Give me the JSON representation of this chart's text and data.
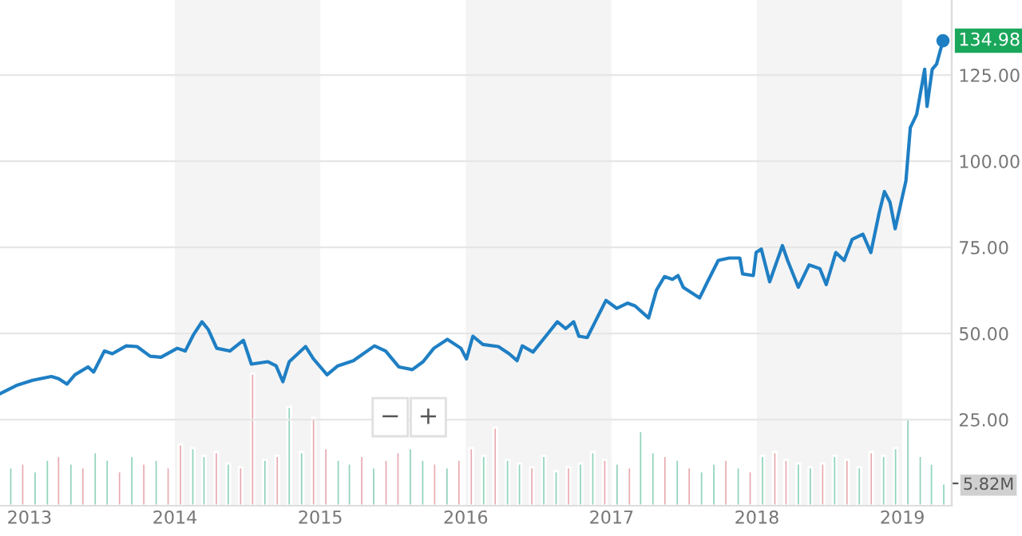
{
  "chart_data": {
    "type": "line",
    "xlim": [
      "2012-10-19",
      "2019-05-05"
    ],
    "xticks": [
      {
        "value": "2013-01-01",
        "label": "2013"
      },
      {
        "value": "2014-01-01",
        "label": "2014"
      },
      {
        "value": "2015-01-01",
        "label": "2015"
      },
      {
        "value": "2016-01-01",
        "label": "2016"
      },
      {
        "value": "2017-01-01",
        "label": "2017"
      },
      {
        "value": "2018-01-01",
        "label": "2018"
      },
      {
        "value": "2019-01-01",
        "label": "2019"
      }
    ],
    "ylim": [
      0,
      146.8
    ],
    "yticks": [
      {
        "value": 25,
        "label": "25.00"
      },
      {
        "value": 50,
        "label": "50.00"
      },
      {
        "value": 75,
        "label": "75.00"
      },
      {
        "value": 100,
        "label": "100.00"
      },
      {
        "value": 125,
        "label": "125.00"
      }
    ],
    "y2lim": [
      0,
      132
    ],
    "y2ticks": [
      {
        "value": 5.82,
        "label": "5.82M"
      }
    ],
    "grid": "y",
    "bands": [
      {
        "axis": "x",
        "from": "2014-01-01",
        "to": "2015-01-01",
        "color": "#f4f4f4"
      },
      {
        "axis": "x",
        "from": "2016-01-01",
        "to": "2017-01-01",
        "color": "#f4f4f4"
      },
      {
        "axis": "x",
        "from": "2018-01-01",
        "to": "2019-01-01",
        "color": "#f4f4f4"
      }
    ],
    "annotations": [
      {
        "text": "134.98",
        "x": "2019-04-13",
        "y": 134.98
      },
      "−",
      "+"
    ],
    "series": [
      {
        "color": "#1f7fc4",
        "x": [
          "2012-10-19",
          "2012-11-29",
          "2013-01-09",
          "2013-02-25",
          "2013-03-15",
          "2013-04-05",
          "2013-04-25",
          "2013-05-28",
          "2013-06-11",
          "2013-07-08",
          "2013-07-28",
          "2013-09-01",
          "2013-09-28",
          "2013-10-31",
          "2013-11-27",
          "2014-01-07",
          "2014-01-27",
          "2014-02-16",
          "2014-03-10",
          "2014-03-26",
          "2014-04-16",
          "2014-05-19",
          "2014-06-22",
          "2014-07-12",
          "2014-08-22",
          "2014-09-12",
          "2014-09-29",
          "2014-10-15",
          "2014-11-25",
          "2014-12-15",
          "2015-01-18",
          "2015-02-14",
          "2015-03-25",
          "2015-05-17",
          "2015-06-14",
          "2015-07-17",
          "2015-08-20",
          "2015-09-16",
          "2015-10-13",
          "2015-11-16",
          "2015-12-20",
          "2016-01-03",
          "2016-01-19",
          "2016-02-13",
          "2016-03-23",
          "2016-04-19",
          "2016-05-09",
          "2016-05-22",
          "2016-06-18",
          "2016-07-22",
          "2016-08-18",
          "2016-09-08",
          "2016-09-28",
          "2016-10-11",
          "2016-11-01",
          "2016-11-21",
          "2016-12-18",
          "2017-01-14",
          "2017-02-10",
          "2017-03-01",
          "2017-04-04",
          "2017-04-24",
          "2017-05-14",
          "2017-06-03",
          "2017-06-17",
          "2017-06-30",
          "2017-08-10",
          "2017-08-30",
          "2017-09-26",
          "2017-10-23",
          "2017-11-19",
          "2017-11-26",
          "2017-12-23",
          "2017-12-30",
          "2018-01-12",
          "2018-02-02",
          "2018-03-06",
          "2018-03-19",
          "2018-04-15",
          "2018-05-12",
          "2018-06-08",
          "2018-06-24",
          "2018-07-18",
          "2018-08-08",
          "2018-08-28",
          "2018-09-24",
          "2018-10-14",
          "2018-11-04",
          "2018-11-17",
          "2018-12-01",
          "2018-12-14",
          "2019-01-10",
          "2019-01-21",
          "2019-02-06",
          "2019-02-26",
          "2019-03-04",
          "2019-03-17",
          "2019-03-28",
          "2019-04-13"
        ],
        "values": [
          32.5,
          34.9,
          36.4,
          37.5,
          36.9,
          35.3,
          38.0,
          40.3,
          38.8,
          44.9,
          44.1,
          46.4,
          46.2,
          43.4,
          43.1,
          45.7,
          44.9,
          49.5,
          53.4,
          51.1,
          45.7,
          44.9,
          48.0,
          41.1,
          41.8,
          40.6,
          36.0,
          41.8,
          46.2,
          42.6,
          38.0,
          40.6,
          42.1,
          46.4,
          44.9,
          40.3,
          39.5,
          41.8,
          45.7,
          48.3,
          45.7,
          42.6,
          49.2,
          46.8,
          46.2,
          44.1,
          42.1,
          46.4,
          44.6,
          49.5,
          53.4,
          51.4,
          53.4,
          49.2,
          48.8,
          53.4,
          59.6,
          57.3,
          58.8,
          58.0,
          54.5,
          62.6,
          66.5,
          65.7,
          66.8,
          63.4,
          60.3,
          65.0,
          71.2,
          71.9,
          71.9,
          67.3,
          66.8,
          73.5,
          74.5,
          65.0,
          75.5,
          71.2,
          63.4,
          69.9,
          68.8,
          64.2,
          73.5,
          71.2,
          77.3,
          78.8,
          73.5,
          85.1,
          91.2,
          88.1,
          80.4,
          94.3,
          109.7,
          113.6,
          126.7,
          115.9,
          126.7,
          128.2,
          134.98
        ]
      },
      {
        "type": "bar",
        "axis": "y2",
        "x": [
          "2012-11-15",
          "2012-12-15",
          "2013-01-15",
          "2013-02-15",
          "2013-03-15",
          "2013-04-15",
          "2013-05-15",
          "2013-06-15",
          "2013-07-15",
          "2013-08-15",
          "2013-09-15",
          "2013-10-15",
          "2013-11-15",
          "2013-12-15",
          "2014-01-15",
          "2014-02-15",
          "2014-03-15",
          "2014-04-15",
          "2014-05-15",
          "2014-06-15",
          "2014-07-15",
          "2014-08-15",
          "2014-09-15",
          "2014-10-15",
          "2014-11-15",
          "2014-12-15",
          "2015-01-15",
          "2015-02-15",
          "2015-03-15",
          "2015-04-15",
          "2015-05-15",
          "2015-06-15",
          "2015-07-15",
          "2015-08-15",
          "2015-09-15",
          "2015-10-15",
          "2015-11-15",
          "2015-12-15",
          "2016-01-15",
          "2016-02-15",
          "2016-03-15",
          "2016-04-15",
          "2016-05-15",
          "2016-06-15",
          "2016-07-15",
          "2016-08-15",
          "2016-09-15",
          "2016-10-15",
          "2016-11-15",
          "2016-12-15",
          "2017-01-15",
          "2017-02-15",
          "2017-03-15",
          "2017-04-15",
          "2017-05-15",
          "2017-06-15",
          "2017-07-15",
          "2017-08-15",
          "2017-09-15",
          "2017-10-15",
          "2017-11-15",
          "2017-12-15",
          "2018-01-15",
          "2018-02-15",
          "2018-03-15",
          "2018-04-15",
          "2018-05-15",
          "2018-06-15",
          "2018-07-15",
          "2018-08-15",
          "2018-09-15",
          "2018-10-15",
          "2018-11-15",
          "2018-12-15",
          "2019-01-15",
          "2019-02-15",
          "2019-03-15",
          "2019-04-15"
        ],
        "values": [
          10,
          11,
          9,
          12,
          13,
          11,
          10,
          14,
          12,
          9,
          13,
          11,
          12,
          10,
          16,
          15,
          13,
          14,
          11,
          10,
          34.5,
          12,
          13,
          25.8,
          14,
          22.9,
          15,
          12,
          11,
          13,
          10,
          12,
          14,
          15,
          12,
          11,
          10,
          12,
          15,
          13,
          20.4,
          12,
          11,
          10,
          13,
          9,
          10,
          11,
          14,
          12,
          11,
          10,
          19.5,
          14,
          13,
          12,
          10,
          9,
          11,
          12,
          10,
          9,
          13,
          14,
          12,
          11,
          10,
          11,
          13,
          12,
          10,
          14,
          13,
          15,
          22.9,
          13,
          11,
          5.82
        ],
        "colors": [
          "#8fd3b8",
          "#e8aab0",
          "#8fd3b8",
          "#8fd3b8",
          "#e8aab0",
          "#8fd3b8",
          "#e8aab0",
          "#8fd3b8",
          "#8fd3b8",
          "#e8aab0",
          "#8fd3b8",
          "#e8aab0",
          "#8fd3b8",
          "#e8aab0",
          "#e8aab0",
          "#8fd3b8",
          "#8fd3b8",
          "#e8aab0",
          "#8fd3b8",
          "#e8aab0",
          "#e8aab0",
          "#8fd3b8",
          "#e8aab0",
          "#8fd3b8",
          "#8fd3b8",
          "#e8aab0",
          "#e8aab0",
          "#8fd3b8",
          "#8fd3b8",
          "#e8aab0",
          "#8fd3b8",
          "#e8aab0",
          "#e8aab0",
          "#8fd3b8",
          "#8fd3b8",
          "#e8aab0",
          "#8fd3b8",
          "#e8aab0",
          "#e8aab0",
          "#8fd3b8",
          "#e8aab0",
          "#8fd3b8",
          "#8fd3b8",
          "#e8aab0",
          "#8fd3b8",
          "#8fd3b8",
          "#e8aab0",
          "#8fd3b8",
          "#8fd3b8",
          "#e8aab0",
          "#8fd3b8",
          "#e8aab0",
          "#8fd3b8",
          "#8fd3b8",
          "#e8aab0",
          "#8fd3b8",
          "#e8aab0",
          "#8fd3b8",
          "#8fd3b8",
          "#e8aab0",
          "#8fd3b8",
          "#e8aab0",
          "#8fd3b8",
          "#e8aab0",
          "#e8aab0",
          "#8fd3b8",
          "#8fd3b8",
          "#e8aab0",
          "#8fd3b8",
          "#e8aab0",
          "#8fd3b8",
          "#e8aab0",
          "#8fd3b8",
          "#8fd3b8",
          "#8fd3b8",
          "#8fd3b8",
          "#8fd3b8",
          "#8fd3b8"
        ]
      }
    ]
  }
}
